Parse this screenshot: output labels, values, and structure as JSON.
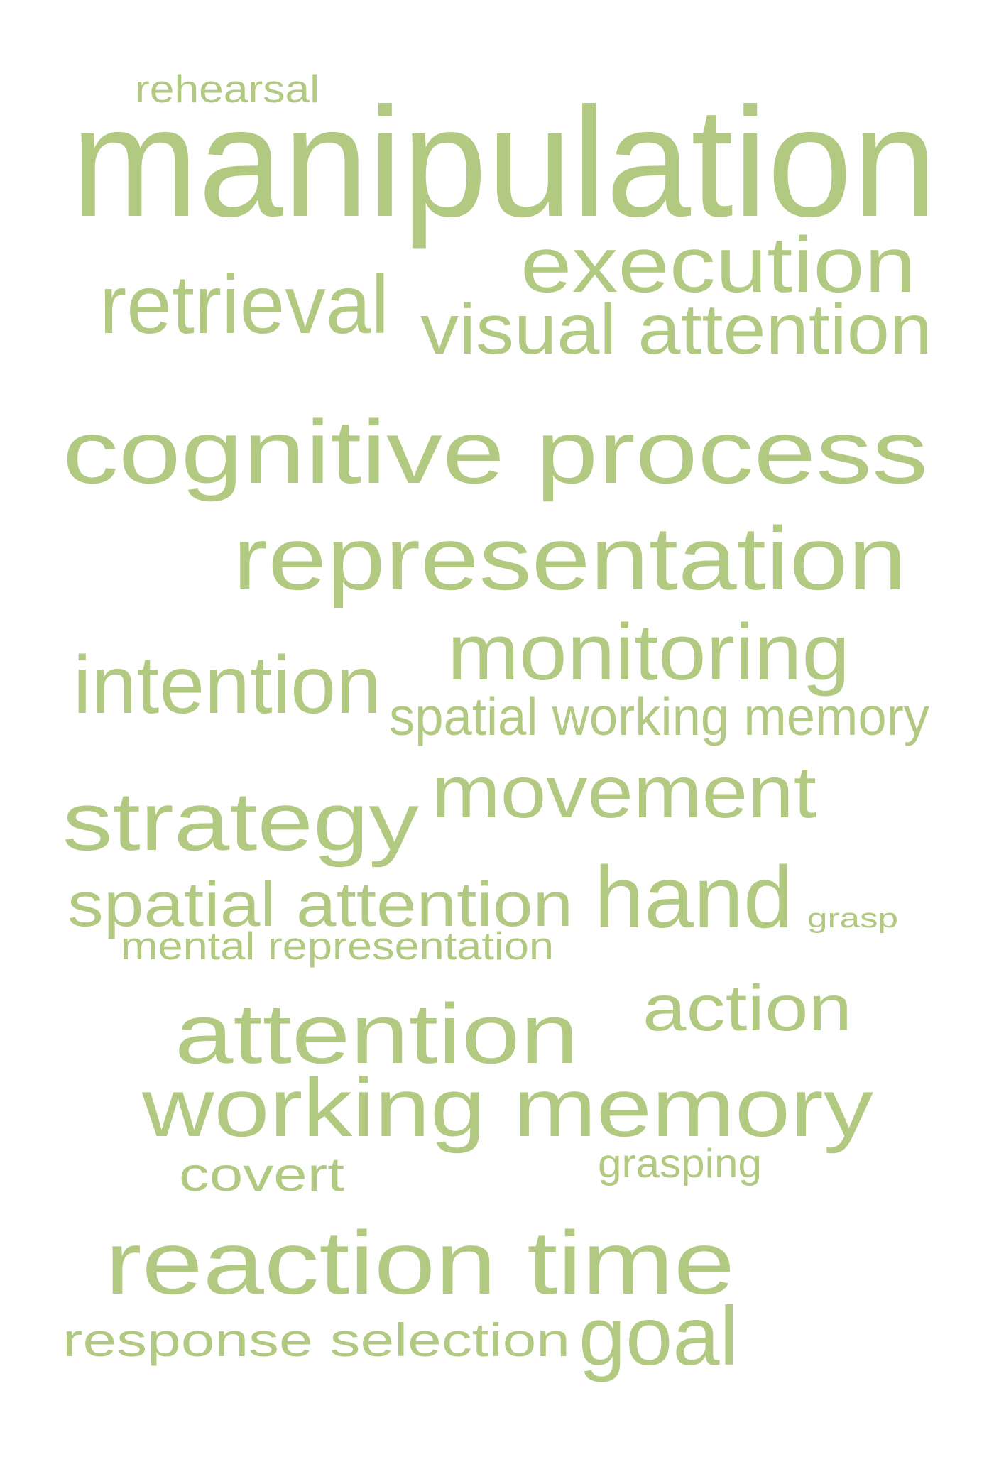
{
  "cloud": {
    "color": "#b2c982",
    "words": [
      {
        "text": "rehearsal"
      },
      {
        "text": "manipulation"
      },
      {
        "text": "execution"
      },
      {
        "text": "retrieval"
      },
      {
        "text": "visual attention"
      },
      {
        "text": "cognitive process"
      },
      {
        "text": "representation"
      },
      {
        "text": "monitoring"
      },
      {
        "text": "intention"
      },
      {
        "text": "spatial working memory"
      },
      {
        "text": "strategy"
      },
      {
        "text": "movement"
      },
      {
        "text": "spatial attention"
      },
      {
        "text": "hand"
      },
      {
        "text": "grasp"
      },
      {
        "text": "mental representation"
      },
      {
        "text": "attention"
      },
      {
        "text": "action"
      },
      {
        "text": "working memory"
      },
      {
        "text": "covert"
      },
      {
        "text": "grasping"
      },
      {
        "text": "reaction time"
      },
      {
        "text": "response selection"
      },
      {
        "text": "goal"
      }
    ]
  }
}
